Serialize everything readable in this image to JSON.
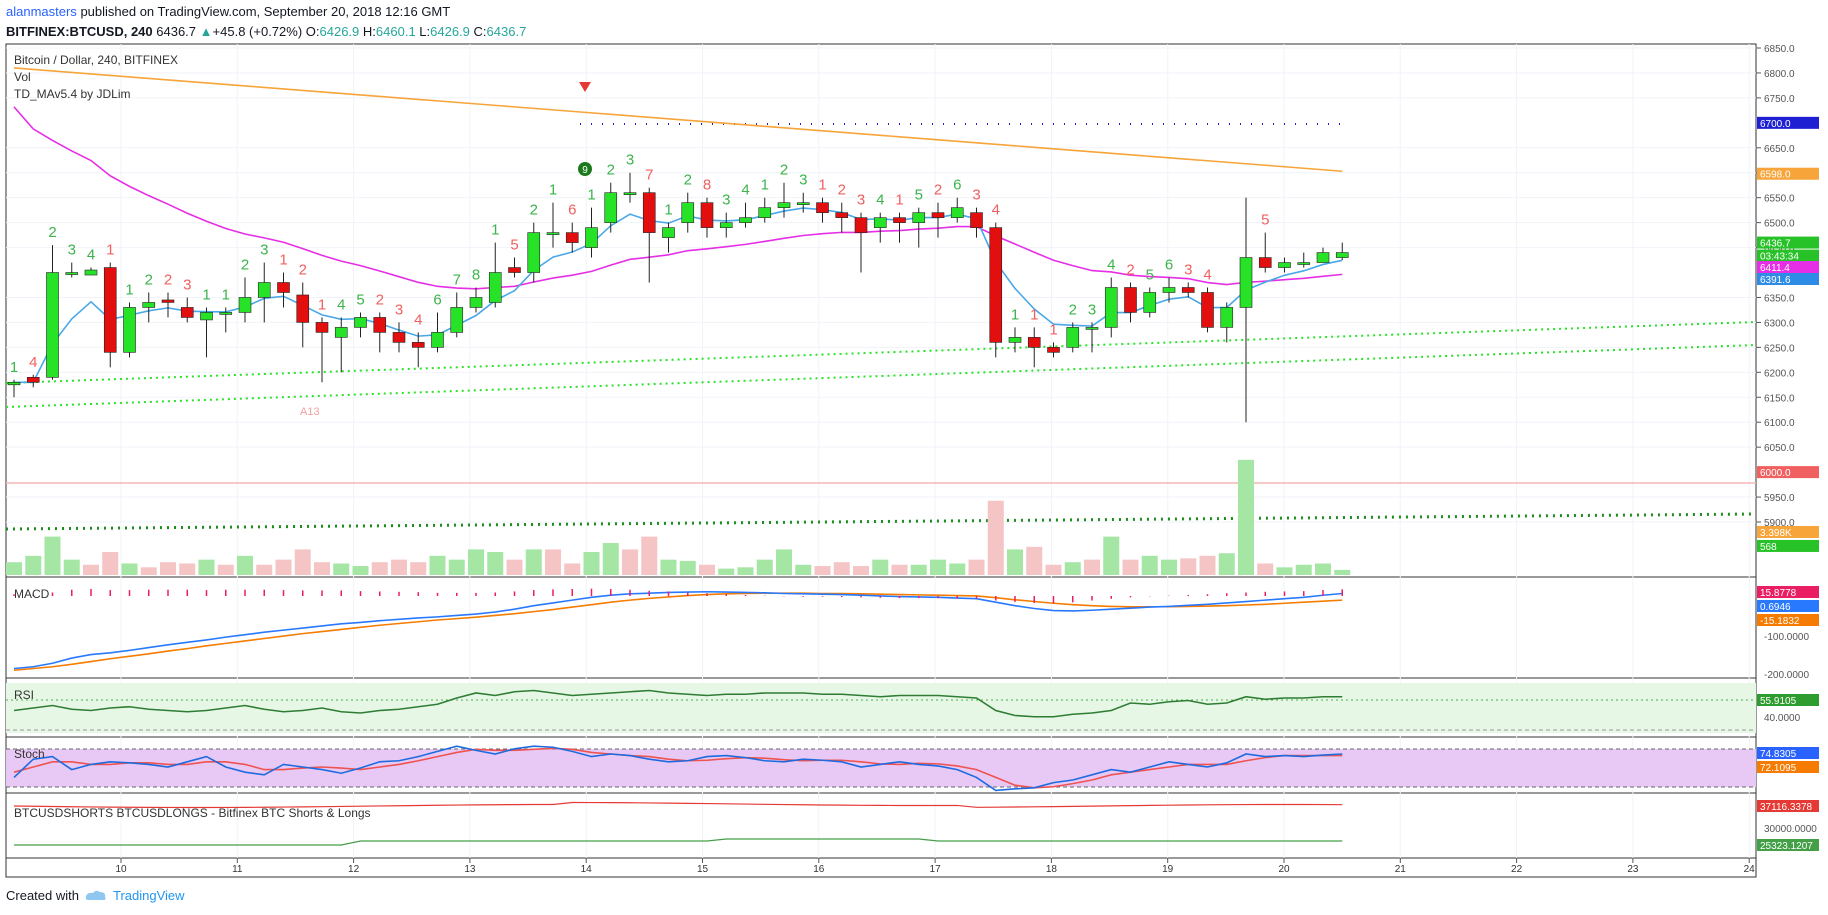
{
  "header": {
    "author": "alanmasters",
    "published": "published on TradingView.com, September 20, 2018 12:16 GMT",
    "symbol": "BITFINEX:BTCUSD, 240",
    "last": "6436.7",
    "change": "+45.8 (+0.72%)",
    "o_label": "O:",
    "o": "6426.9",
    "h_label": "H:",
    "h": "6460.1",
    "l_label": "L:",
    "l": "6426.9",
    "c_label": "C:",
    "c": "6436.7"
  },
  "legend": {
    "title": "Bitcoin / Dollar, 240, BITFINEX",
    "vol": "Vol",
    "indicator": "TD_MAv5.4 by JDLim"
  },
  "panes": {
    "macd": "MACD",
    "rsi": "RSI",
    "stoch": "Stoch",
    "shorts_longs": "BTCUSDSHORTS BTCUSDLONGS - Bitfinex BTC Shorts & Longs"
  },
  "footer": {
    "created_with": "Created with",
    "brand": "TradingView"
  },
  "colors": {
    "bull": "#27e327",
    "bear": "#e30e0e",
    "ma_orange": "#f7a43a",
    "ma_magenta": "#e62ee6",
    "ma_blue": "#4aa8e8",
    "macd": "#2979ff",
    "signal": "#f57c00",
    "green_text": "#3cb44b",
    "red_text": "#f06060"
  },
  "chart_data": {
    "type": "candlestick",
    "price_axis": {
      "ticks": [
        6850,
        6800,
        6750,
        6650,
        6600,
        6550,
        6500,
        6450,
        6350,
        6300,
        6250,
        6200,
        6150,
        6100,
        6050,
        5950,
        5900
      ],
      "tick_labels": [
        "6850.0",
        "6800.0",
        "6750.0",
        "6650.0",
        "6600.0",
        "6550.0",
        "6500.0",
        "6450.0",
        "6350.0",
        "6300.0",
        "6250.0",
        "6200.0",
        "6150.0",
        "6100.0",
        "6050.0",
        "5950.0",
        "5900.0"
      ],
      "range": [
        5850,
        6860
      ]
    },
    "time_axis": {
      "labels": [
        "10",
        "11",
        "12",
        "13",
        "14",
        "15",
        "16",
        "17",
        "18",
        "19",
        "20",
        "21",
        "22",
        "23",
        "24"
      ]
    },
    "price_tags": [
      {
        "label": "6700.0",
        "value": 6700,
        "color": "#1e1ed2"
      },
      {
        "label": "6598.0",
        "value": 6598,
        "color": "#f7a43a"
      },
      {
        "label": "6436.7",
        "value": 6460,
        "color": "#27c227"
      },
      {
        "label": "03:43:34",
        "value": 6434,
        "color": "#27c227"
      },
      {
        "label": "6411.4",
        "value": 6411,
        "color": "#e62ee6"
      },
      {
        "label": "6391.6",
        "value": 6387,
        "color": "#2e8ce6"
      },
      {
        "label": "6000.0",
        "value": 6000,
        "color": "#f06060"
      },
      {
        "label": "3.398K",
        "value": 5880,
        "color": "#f7a43a"
      },
      {
        "label": "568",
        "value": 5852,
        "color": "#27c227"
      }
    ],
    "candles": [
      [
        6175,
        6180,
        6150,
        6185
      ],
      [
        6190,
        6180,
        6170,
        6195
      ],
      [
        6190,
        6400,
        6185,
        6455
      ],
      [
        6400,
        6400,
        6390,
        6420
      ],
      [
        6395,
        6405,
        6395,
        6410
      ],
      [
        6410,
        6240,
        6210,
        6420
      ],
      [
        6240,
        6330,
        6230,
        6340
      ],
      [
        6330,
        6340,
        6300,
        6360
      ],
      [
        6345,
        6340,
        6310,
        6360
      ],
      [
        6330,
        6310,
        6300,
        6350
      ],
      [
        6305,
        6320,
        6230,
        6330
      ],
      [
        6320,
        6320,
        6280,
        6330
      ],
      [
        6320,
        6350,
        6300,
        6390
      ],
      [
        6350,
        6380,
        6300,
        6420
      ],
      [
        6380,
        6360,
        6330,
        6400
      ],
      [
        6355,
        6300,
        6250,
        6380
      ],
      [
        6300,
        6280,
        6180,
        6310
      ],
      [
        6270,
        6290,
        6200,
        6310
      ],
      [
        6290,
        6310,
        6270,
        6320
      ],
      [
        6310,
        6280,
        6240,
        6320
      ],
      [
        6280,
        6260,
        6240,
        6300
      ],
      [
        6260,
        6250,
        6210,
        6280
      ],
      [
        6250,
        6280,
        6240,
        6320
      ],
      [
        6280,
        6330,
        6270,
        6360
      ],
      [
        6330,
        6350,
        6320,
        6370
      ],
      [
        6340,
        6400,
        6330,
        6460
      ],
      [
        6410,
        6400,
        6390,
        6430
      ],
      [
        6400,
        6480,
        6380,
        6500
      ],
      [
        6480,
        6480,
        6450,
        6540
      ],
      [
        6480,
        6460,
        6440,
        6500
      ],
      [
        6450,
        6490,
        6430,
        6530
      ],
      [
        6500,
        6560,
        6480,
        6580
      ],
      [
        6560,
        6560,
        6540,
        6600
      ],
      [
        6560,
        6480,
        6380,
        6570
      ],
      [
        6470,
        6490,
        6440,
        6500
      ],
      [
        6500,
        6540,
        6480,
        6560
      ],
      [
        6540,
        6490,
        6470,
        6550
      ],
      [
        6490,
        6500,
        6470,
        6520
      ],
      [
        6500,
        6510,
        6490,
        6540
      ],
      [
        6510,
        6530,
        6500,
        6550
      ],
      [
        6530,
        6540,
        6510,
        6580
      ],
      [
        6540,
        6540,
        6520,
        6560
      ],
      [
        6540,
        6520,
        6500,
        6550
      ],
      [
        6520,
        6510,
        6480,
        6540
      ],
      [
        6510,
        6480,
        6400,
        6520
      ],
      [
        6490,
        6510,
        6460,
        6520
      ],
      [
        6510,
        6500,
        6460,
        6520
      ],
      [
        6500,
        6520,
        6450,
        6530
      ],
      [
        6520,
        6510,
        6470,
        6540
      ],
      [
        6510,
        6530,
        6500,
        6550
      ],
      [
        6520,
        6490,
        6470,
        6530
      ],
      [
        6490,
        6260,
        6230,
        6500
      ],
      [
        6260,
        6270,
        6240,
        6290
      ],
      [
        6270,
        6250,
        6210,
        6290
      ],
      [
        6250,
        6240,
        6230,
        6260
      ],
      [
        6250,
        6290,
        6240,
        6300
      ],
      [
        6290,
        6290,
        6240,
        6300
      ],
      [
        6290,
        6370,
        6270,
        6390
      ],
      [
        6370,
        6320,
        6300,
        6380
      ],
      [
        6320,
        6360,
        6310,
        6370
      ],
      [
        6360,
        6370,
        6340,
        6390
      ],
      [
        6370,
        6360,
        6350,
        6380
      ],
      [
        6360,
        6290,
        6280,
        6370
      ],
      [
        6290,
        6330,
        6260,
        6340
      ],
      [
        6330,
        6430,
        6100,
        6550
      ],
      [
        6430,
        6410,
        6400,
        6480
      ],
      [
        6410,
        6420,
        6400,
        6430
      ],
      [
        6420,
        6420,
        6410,
        6440
      ],
      [
        6420,
        6440,
        6420,
        6450
      ],
      [
        6430,
        6440,
        6425,
        6460
      ]
    ],
    "volume": [
      10,
      15,
      30,
      12,
      8,
      18,
      9,
      6,
      10,
      9,
      12,
      8,
      15,
      8,
      12,
      20,
      10,
      9,
      7,
      10,
      12,
      10,
      15,
      12,
      20,
      18,
      12,
      20,
      20,
      9,
      18,
      25,
      20,
      30,
      12,
      11,
      8,
      5,
      6,
      12,
      20,
      8,
      7,
      10,
      7,
      12,
      8,
      8,
      12,
      9,
      12,
      58,
      20,
      22,
      8,
      10,
      12,
      30,
      12,
      15,
      12,
      13,
      15,
      17,
      90,
      9,
      6,
      8,
      9,
      4
    ],
    "volume_up": [
      1,
      1,
      1,
      1,
      0,
      0,
      1,
      0,
      0,
      0,
      1,
      0,
      1,
      0,
      0,
      0,
      0,
      1,
      1,
      0,
      0,
      0,
      1,
      1,
      1,
      1,
      0,
      1,
      0,
      0,
      1,
      1,
      0,
      0,
      1,
      1,
      0,
      1,
      1,
      1,
      1,
      1,
      0,
      0,
      0,
      1,
      0,
      1,
      1,
      1,
      0,
      0,
      1,
      0,
      0,
      1,
      0,
      1,
      0,
      1,
      1,
      0,
      0,
      1,
      1,
      0,
      1,
      1,
      1,
      1
    ],
    "td_counts_green": [
      "1",
      "2",
      "3",
      "4",
      "1",
      "2",
      "1",
      "1",
      "2",
      "3",
      "4",
      "5",
      "6",
      "7",
      "8",
      "1",
      "2",
      "1",
      "1",
      "2",
      "3",
      "1",
      "2",
      "3",
      "4",
      "1",
      "2",
      "3",
      "4",
      "5",
      "6",
      "1",
      "2",
      "3",
      "4",
      "5",
      "6"
    ],
    "td_counts_red": [
      "4",
      "1",
      "2",
      "3",
      "1",
      "2",
      "1",
      "2",
      "3",
      "4",
      "5",
      "6",
      "7",
      "8",
      "1",
      "2",
      "3",
      "1",
      "2",
      "3",
      "4",
      "1",
      "1",
      "2",
      "3",
      "4",
      "5",
      "1",
      "2",
      "3"
    ],
    "annotations": [
      "9",
      "A13"
    ]
  },
  "macd_data": {
    "ticks_label": [
      "-100.0000",
      "-200.0000"
    ],
    "tags": [
      {
        "label": "15.8778",
        "color": "#e91e63"
      },
      {
        "label": "0.6946",
        "color": "#2979ff"
      },
      {
        "label": "-15.1832",
        "color": "#f57c00"
      }
    ],
    "macd": [
      -200,
      -195,
      -185,
      -170,
      -160,
      -155,
      -148,
      -140,
      -132,
      -125,
      -118,
      -110,
      -103,
      -96,
      -90,
      -84,
      -78,
      -72,
      -68,
      -63,
      -59,
      -55,
      -52,
      -48,
      -44,
      -38,
      -30,
      -20,
      -12,
      -4,
      4,
      10,
      14,
      16,
      18,
      19,
      20,
      19,
      18,
      17,
      15,
      14,
      13,
      12,
      10,
      8,
      6,
      5,
      4,
      2,
      0,
      -10,
      -20,
      -28,
      -34,
      -35,
      -33,
      -30,
      -27,
      -24,
      -22,
      -19,
      -16,
      -12,
      -8,
      -4,
      0,
      4,
      10,
      15
    ],
    "signal": [
      -205,
      -200,
      -195,
      -188,
      -180,
      -172,
      -165,
      -158,
      -150,
      -143,
      -135,
      -128,
      -121,
      -114,
      -107,
      -100,
      -94,
      -88,
      -82,
      -76,
      -71,
      -66,
      -61,
      -57,
      -53,
      -48,
      -43,
      -37,
      -31,
      -24,
      -17,
      -10,
      -4,
      1,
      5,
      9,
      12,
      14,
      15,
      16,
      16,
      16,
      15,
      15,
      14,
      13,
      12,
      11,
      10,
      9,
      8,
      3,
      -3,
      -8,
      -13,
      -17,
      -20,
      -22,
      -23,
      -23,
      -23,
      -22,
      -21,
      -20,
      -18,
      -16,
      -13,
      -10,
      -7,
      -4
    ]
  },
  "rsi_data": {
    "tick_label": "40.0000",
    "tag": "55.9105",
    "values": [
      48,
      50,
      52,
      49,
      48,
      50,
      51,
      49,
      48,
      47,
      48,
      50,
      52,
      49,
      47,
      48,
      50,
      47,
      46,
      48,
      49,
      51,
      53,
      58,
      62,
      60,
      63,
      64,
      62,
      60,
      61,
      62,
      63,
      64,
      62,
      61,
      60,
      61,
      61,
      62,
      62,
      62,
      61,
      61,
      60,
      59,
      60,
      60,
      60,
      59,
      58,
      48,
      44,
      43,
      43,
      45,
      46,
      48,
      54,
      53,
      55,
      56,
      53,
      54,
      59,
      57,
      58,
      58,
      59,
      59
    ]
  },
  "stoch_data": {
    "tags": [
      {
        "label": "74.8305",
        "color": "#2962ff"
      },
      {
        "label": "72.1095",
        "color": "#f57c00"
      }
    ],
    "k": [
      30,
      65,
      70,
      45,
      55,
      60,
      58,
      55,
      50,
      60,
      70,
      50,
      40,
      35,
      55,
      50,
      45,
      38,
      48,
      60,
      62,
      70,
      80,
      90,
      82,
      75,
      85,
      90,
      88,
      80,
      70,
      75,
      72,
      65,
      60,
      62,
      70,
      72,
      68,
      62,
      60,
      65,
      63,
      60,
      50,
      55,
      60,
      55,
      52,
      45,
      30,
      5,
      8,
      10,
      20,
      25,
      35,
      45,
      40,
      50,
      60,
      55,
      50,
      58,
      75,
      70,
      72,
      70,
      73,
      75
    ],
    "d": [
      40,
      50,
      60,
      60,
      55,
      55,
      58,
      58,
      55,
      55,
      60,
      60,
      55,
      45,
      45,
      48,
      50,
      48,
      45,
      50,
      55,
      62,
      70,
      78,
      84,
      82,
      82,
      84,
      86,
      84,
      78,
      75,
      72,
      70,
      65,
      62,
      63,
      66,
      68,
      67,
      64,
      62,
      63,
      63,
      60,
      56,
      55,
      57,
      56,
      52,
      45,
      30,
      15,
      10,
      12,
      18,
      25,
      35,
      40,
      45,
      50,
      55,
      55,
      55,
      62,
      68,
      72,
      72,
      72,
      72
    ]
  },
  "sl_data": {
    "tick_label": "30000.0000",
    "tags": [
      {
        "label": "37116.3378",
        "color": "#e53935"
      },
      {
        "label": "25323.1207",
        "color": "#43a047"
      }
    ]
  }
}
